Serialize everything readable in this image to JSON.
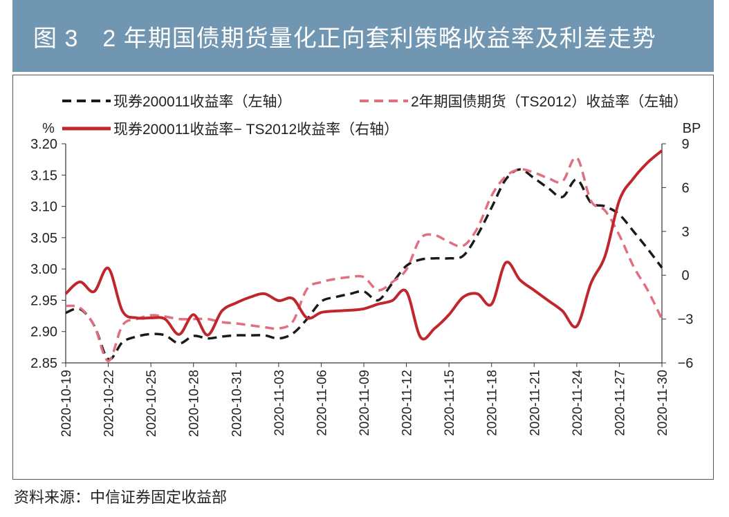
{
  "title": "图 3　2 年期国债期货量化正向套利策略收益率及利差走势",
  "source": "资料来源：中信证券固定收益部",
  "chart_data": {
    "type": "line",
    "left_unit": "%",
    "right_unit": "BP",
    "ylim_left": [
      2.85,
      3.2
    ],
    "yticks_left": [
      "3.20",
      "3.15",
      "3.10",
      "3.05",
      "3.00",
      "2.95",
      "2.90",
      "2.85"
    ],
    "ylim_right": [
      -6,
      9
    ],
    "yticks_right": [
      "9",
      "6",
      "3",
      "0",
      "−3",
      "−6"
    ],
    "start_date": "2020-10-19",
    "xtick_labels": [
      "2020-10-19",
      "2020-10-22",
      "2020-10-25",
      "2020-10-28",
      "2020-10-31",
      "2020-11-03",
      "2020-11-06",
      "2020-11-09",
      "2020-11-12",
      "2020-11-15",
      "2020-11-18",
      "2020-11-21",
      "2020-11-24",
      "2020-11-27",
      "2020-11-30"
    ],
    "series": [
      {
        "name": "现券200011收益率（左轴）",
        "axis": "left",
        "color": "#1a1a1a",
        "dash": true,
        "values": [
          2.93,
          2.936,
          2.91,
          2.856,
          2.883,
          2.892,
          2.896,
          2.894,
          2.881,
          2.893,
          2.889,
          2.892,
          2.894,
          2.894,
          2.894,
          2.889,
          2.897,
          2.92,
          2.948,
          2.955,
          2.96,
          2.964,
          2.95,
          2.977,
          3.005,
          3.015,
          3.017,
          3.017,
          3.021,
          3.054,
          3.098,
          3.143,
          3.159,
          3.145,
          3.129,
          3.115,
          3.143,
          3.106,
          3.1,
          3.087,
          3.06,
          3.032,
          3.002
        ]
      },
      {
        "name": "2年期国债期货（TS2012）收益率（左轴）",
        "axis": "left",
        "color": "#e07080",
        "dash": true,
        "values": [
          2.941,
          2.938,
          2.91,
          2.853,
          2.91,
          2.92,
          2.926,
          2.924,
          2.92,
          2.92,
          2.92,
          2.915,
          2.913,
          2.91,
          2.907,
          2.905,
          2.916,
          2.968,
          2.979,
          2.984,
          2.987,
          2.987,
          2.966,
          2.979,
          2.999,
          3.049,
          3.054,
          3.043,
          3.037,
          3.065,
          3.117,
          3.148,
          3.159,
          3.154,
          3.145,
          3.14,
          3.178,
          3.109,
          3.093,
          3.054,
          3.004,
          2.966,
          2.92
        ]
      },
      {
        "name": "现券200011收益率− TS2012收益率（右轴）",
        "axis": "right",
        "color": "#c0272d",
        "dash": false,
        "values": [
          -1.27,
          -0.46,
          -1.12,
          0.48,
          -2.46,
          -2.92,
          -2.92,
          -3.0,
          -4.05,
          -2.7,
          -4.1,
          -2.45,
          -1.9,
          -1.5,
          -1.27,
          -1.74,
          -1.6,
          -2.92,
          -2.55,
          -2.45,
          -2.4,
          -2.3,
          -1.98,
          -1.74,
          -1.12,
          -4.25,
          -3.63,
          -2.7,
          -1.5,
          -1.27,
          -1.98,
          0.86,
          -0.32,
          -1.03,
          -1.74,
          -2.45,
          -3.49,
          -0.55,
          1.33,
          5.12,
          6.63,
          7.72,
          8.53
        ]
      }
    ]
  }
}
